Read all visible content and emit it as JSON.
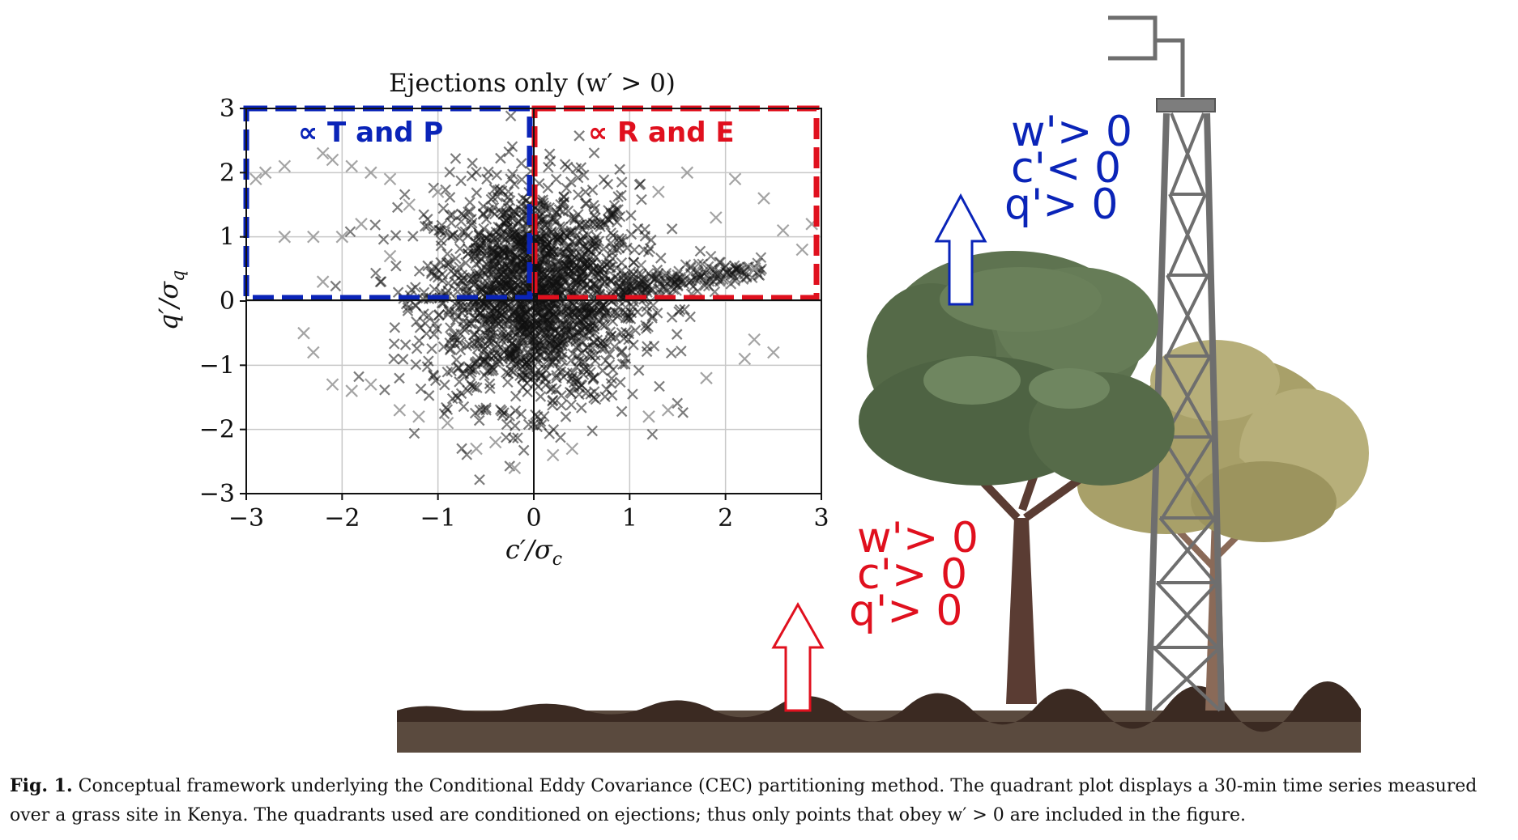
{
  "figure": {
    "plot_title": "Ejections only (w′ > 0)",
    "box_labels": {
      "left": "∝ T and P",
      "right": "∝ R and E"
    },
    "scene_labels": {
      "blue": [
        "w'> 0",
        "c'< 0",
        "q'> 0"
      ],
      "red": [
        "w'> 0",
        "c'> 0",
        "q'> 0"
      ]
    },
    "colors": {
      "blue": "#0a24b8",
      "red": "#e0101e",
      "scatter": "#111111",
      "scatter_light": "#9a9a9a"
    }
  },
  "caption": {
    "label": "Fig. 1.",
    "text": "Conceptual framework underlying the Conditional Eddy Covariance (CEC) partitioning method. The quadrant plot displays a 30-min time series measured over a grass site in Kenya. The quadrants used are conditioned on ejections; thus only points that obey w′ > 0 are included in the figure."
  },
  "chart_data": {
    "type": "scatter",
    "title": "Ejections only (w′ > 0)",
    "xlabel": "c′/σc",
    "ylabel": "q′/σq",
    "xlim": [
      -3,
      3
    ],
    "ylim": [
      -3,
      3
    ],
    "xticks": [
      "−3",
      "−2",
      "−1",
      "0",
      "1",
      "2",
      "3"
    ],
    "yticks": [
      "3",
      "2",
      "1",
      "0",
      "−1",
      "−2",
      "−3"
    ],
    "grid": true,
    "marker": "x",
    "sample_points": [
      [
        -2.9,
        1.9
      ],
      [
        -2.6,
        2.1
      ],
      [
        -2.2,
        2.3
      ],
      [
        -2.1,
        2.2
      ],
      [
        -1.9,
        2.1
      ],
      [
        -1.7,
        2.0
      ],
      [
        -1.8,
        1.2
      ],
      [
        -2.0,
        1.0
      ],
      [
        -2.6,
        1.0
      ],
      [
        -2.3,
        1.0
      ],
      [
        -1.5,
        0.7
      ],
      [
        -2.2,
        0.3
      ],
      [
        -2.4,
        -0.5
      ],
      [
        -2.3,
        -0.8
      ],
      [
        -2.1,
        -1.3
      ],
      [
        -1.9,
        -1.4
      ],
      [
        -1.7,
        -1.3
      ],
      [
        -1.4,
        -1.7
      ],
      [
        -1.2,
        -1.8
      ],
      [
        -0.9,
        -1.9
      ],
      [
        -0.6,
        -2.3
      ],
      [
        -0.4,
        -2.2
      ],
      [
        -0.2,
        -2.6
      ],
      [
        0.2,
        -2.4
      ],
      [
        0.4,
        -2.3
      ],
      [
        1.2,
        -1.8
      ],
      [
        1.4,
        -1.7
      ],
      [
        1.8,
        -1.2
      ],
      [
        2.2,
        -0.9
      ],
      [
        2.3,
        -0.6
      ],
      [
        2.5,
        -0.8
      ],
      [
        1.6,
        2.0
      ],
      [
        2.1,
        1.9
      ],
      [
        2.4,
        1.6
      ],
      [
        2.8,
        0.8
      ],
      [
        2.9,
        1.2
      ],
      [
        1.9,
        1.3
      ],
      [
        2.3,
        0.5
      ],
      [
        -2.8,
        2.0
      ],
      [
        -1.5,
        1.9
      ],
      [
        -1.3,
        1.5
      ],
      [
        2.6,
        1.1
      ],
      [
        1.3,
        1.7
      ],
      [
        -1.0,
        1.7
      ]
    ]
  }
}
